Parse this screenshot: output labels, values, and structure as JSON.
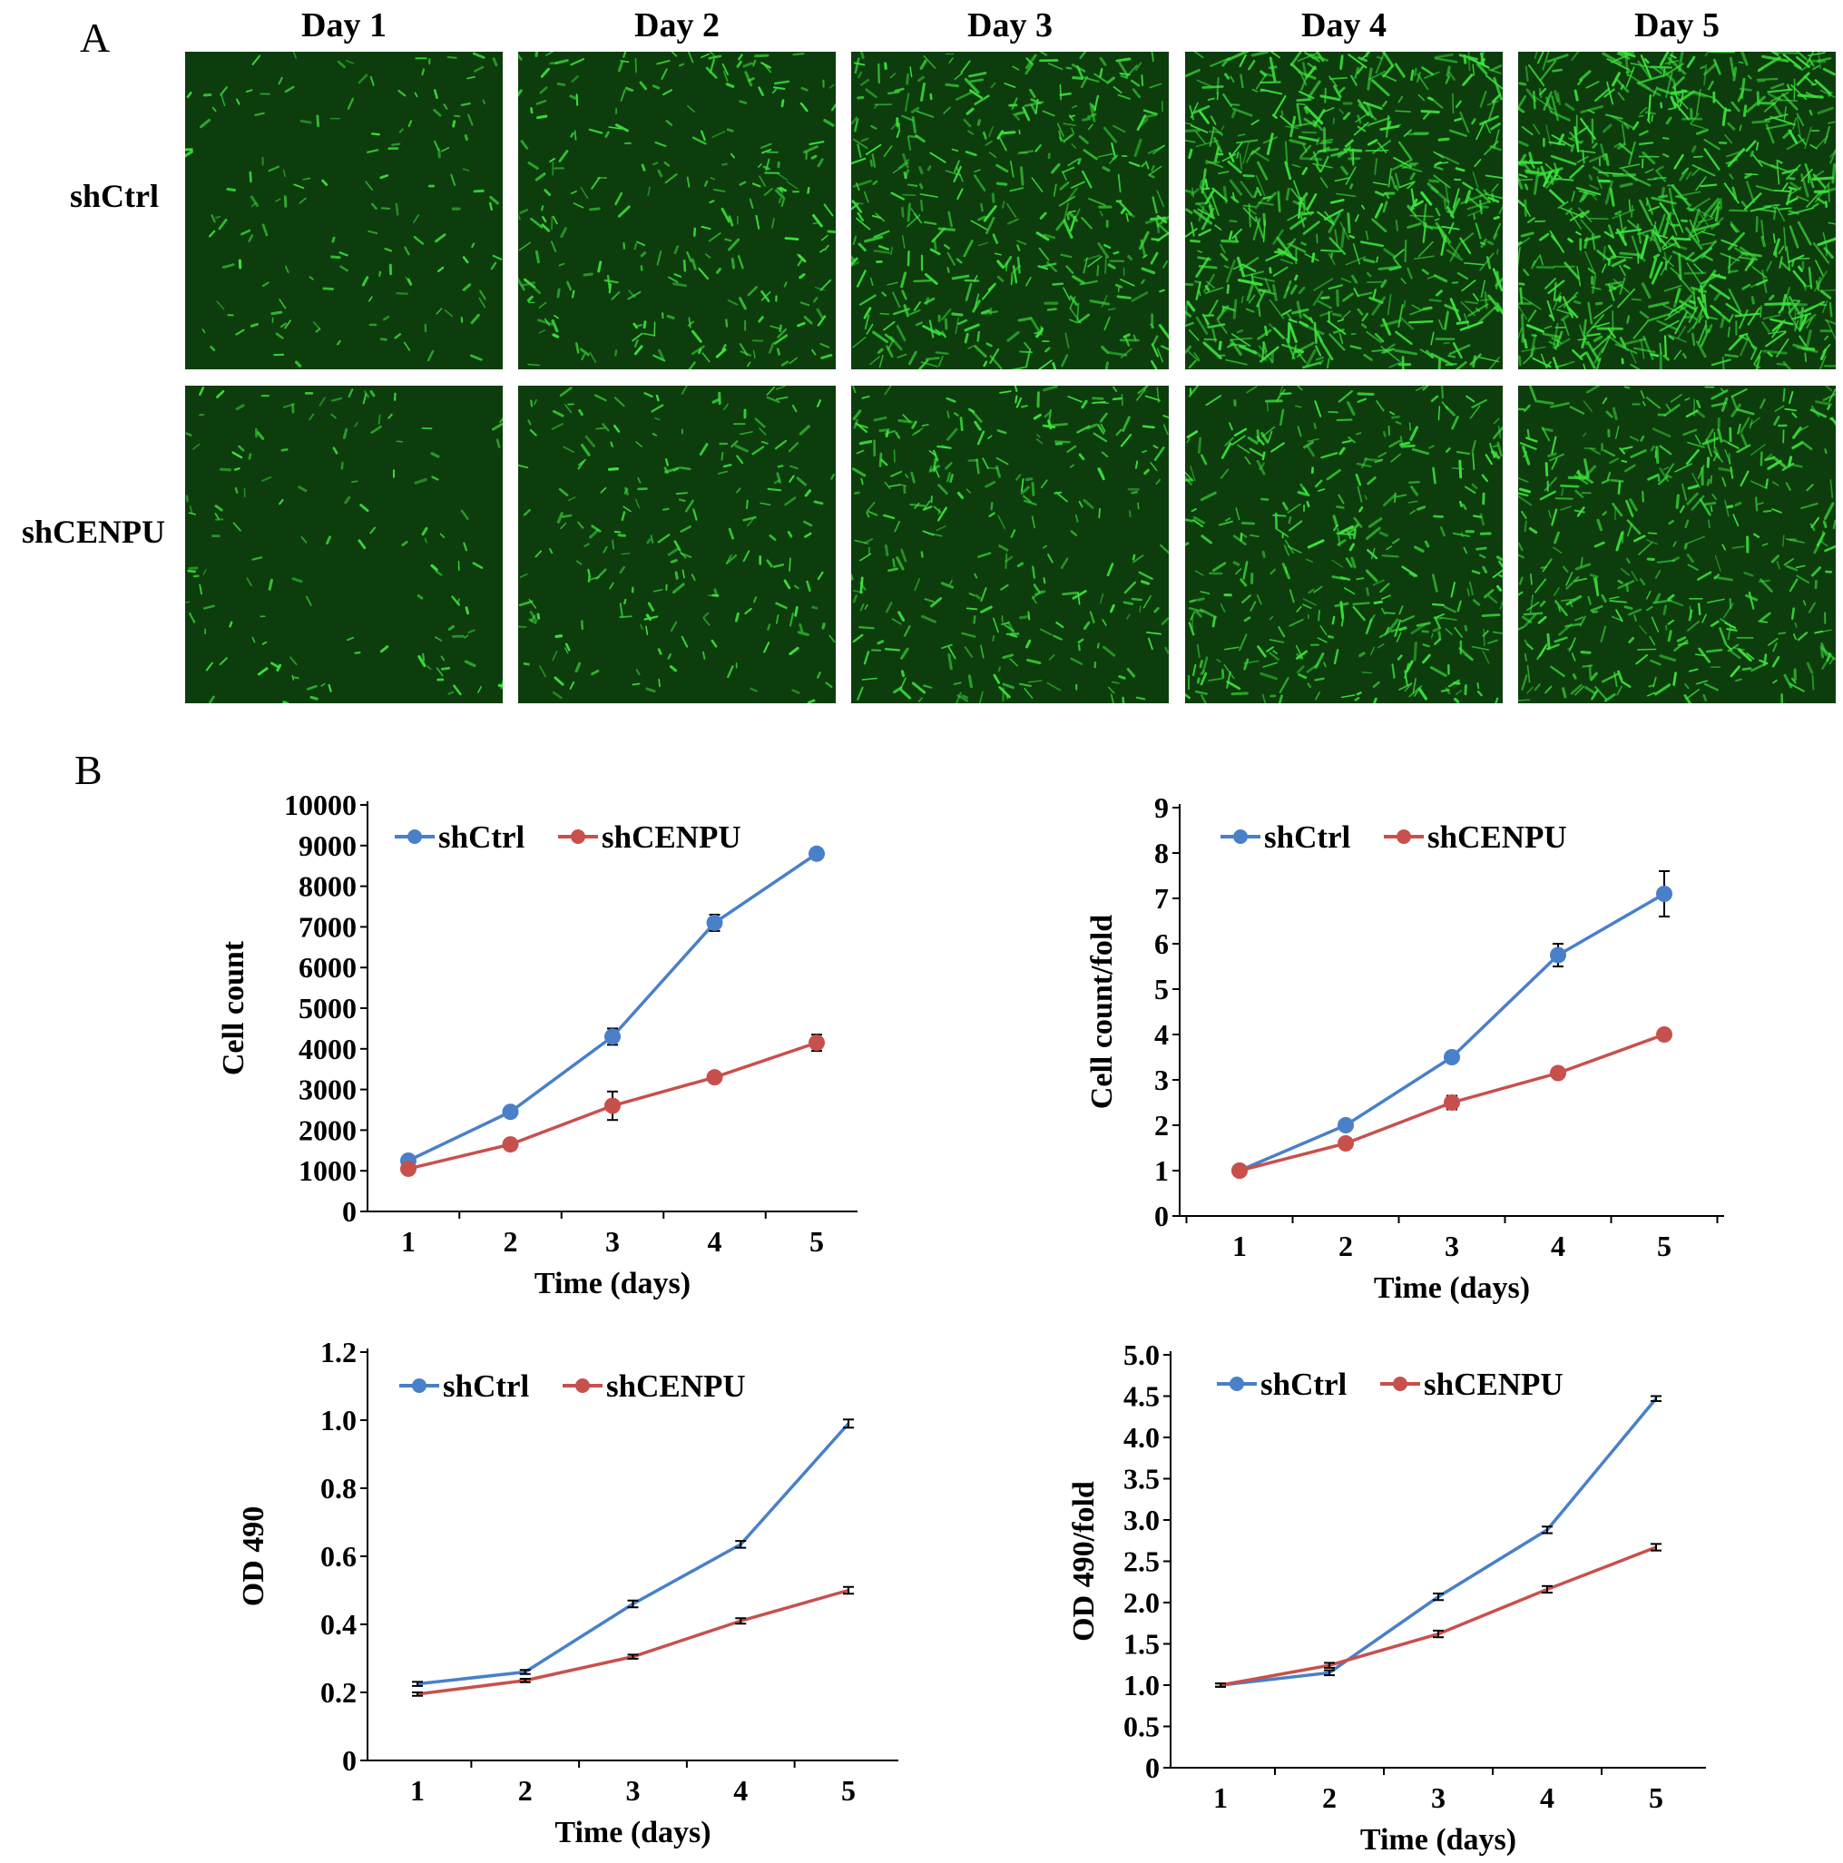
{
  "panel_a": {
    "letter": "A",
    "days": [
      "Day 1",
      "Day 2",
      "Day 3",
      "Day 4",
      "Day 5"
    ],
    "rows": [
      "shCtrl",
      "shCENPU"
    ],
    "colors": {
      "background": "#0d3d0d",
      "cells": "#3ce23c"
    },
    "relative_cell_density": [
      [
        0.12,
        0.3,
        0.55,
        0.85,
        1.0
      ],
      [
        0.1,
        0.22,
        0.35,
        0.48,
        0.55
      ]
    ]
  },
  "panel_b": {
    "letter": "B"
  },
  "series_colors": {
    "shCtrl": "#4a7fc9",
    "shCENPU": "#c8504c"
  },
  "chart_data": [
    {
      "type": "line",
      "xlabel": "Time (days)",
      "ylabel": "Cell count",
      "x": [
        1,
        2,
        3,
        4,
        5
      ],
      "ylim": [
        0,
        10000
      ],
      "yticks": [
        "0",
        "1000",
        "2000",
        "3000",
        "4000",
        "5000",
        "6000",
        "7000",
        "8000",
        "9000",
        "10000"
      ],
      "markers": true,
      "series": [
        {
          "name": "shCtrl",
          "values": [
            1250,
            2450,
            4300,
            7100,
            8800
          ],
          "errors": [
            60,
            80,
            200,
            200,
            80
          ]
        },
        {
          "name": "shCENPU",
          "values": [
            1050,
            1650,
            2600,
            3300,
            4150
          ],
          "errors": [
            60,
            60,
            350,
            100,
            200
          ]
        }
      ],
      "legend": "top-left"
    },
    {
      "type": "line",
      "xlabel": "Time (days)",
      "ylabel": "Cell count/fold",
      "x": [
        1,
        2,
        3,
        4,
        5
      ],
      "ylim": [
        0,
        9
      ],
      "yticks": [
        "0",
        "1",
        "2",
        "3",
        "4",
        "5",
        "6",
        "7",
        "8",
        "9"
      ],
      "markers": true,
      "series": [
        {
          "name": "shCtrl",
          "values": [
            1.0,
            2.0,
            3.5,
            5.75,
            7.1
          ],
          "errors": [
            0.05,
            0.08,
            0.1,
            0.25,
            0.5
          ]
        },
        {
          "name": "shCENPU",
          "values": [
            1.0,
            1.6,
            2.5,
            3.15,
            4.0
          ],
          "errors": [
            0.05,
            0.08,
            0.15,
            0.08,
            0.05
          ]
        }
      ],
      "legend": "top-left"
    },
    {
      "type": "line",
      "xlabel": "Time (days)",
      "ylabel": "OD 490",
      "x": [
        1,
        2,
        3,
        4,
        5
      ],
      "ylim": [
        0,
        1.2
      ],
      "yticks": [
        "0",
        "0.2",
        "0.4",
        "0.6",
        "0.8",
        "1.0",
        "1.2"
      ],
      "markers": false,
      "series": [
        {
          "name": "shCtrl",
          "values": [
            0.225,
            0.26,
            0.46,
            0.635,
            0.99
          ],
          "errors": [
            0.006,
            0.006,
            0.01,
            0.01,
            0.012
          ]
        },
        {
          "name": "shCENPU",
          "values": [
            0.195,
            0.235,
            0.305,
            0.41,
            0.5
          ],
          "errors": [
            0.005,
            0.005,
            0.006,
            0.008,
            0.01
          ]
        }
      ],
      "legend": "top-left"
    },
    {
      "type": "line",
      "xlabel": "Time (days)",
      "ylabel": "OD 490/fold",
      "x": [
        1,
        2,
        3,
        4,
        5
      ],
      "ylim": [
        0,
        5.0
      ],
      "yticks": [
        "0",
        "0.5",
        "1.0",
        "1.5",
        "2.0",
        "2.5",
        "3.0",
        "3.5",
        "4.0",
        "4.5",
        "5.0"
      ],
      "markers": false,
      "series": [
        {
          "name": "shCtrl",
          "values": [
            1.0,
            1.15,
            2.07,
            2.88,
            4.47
          ],
          "errors": [
            0.02,
            0.03,
            0.04,
            0.04,
            0.03
          ]
        },
        {
          "name": "shCENPU",
          "values": [
            1.0,
            1.24,
            1.62,
            2.16,
            2.67
          ],
          "errors": [
            0.02,
            0.03,
            0.04,
            0.04,
            0.04
          ]
        }
      ],
      "legend": "top-left"
    }
  ]
}
